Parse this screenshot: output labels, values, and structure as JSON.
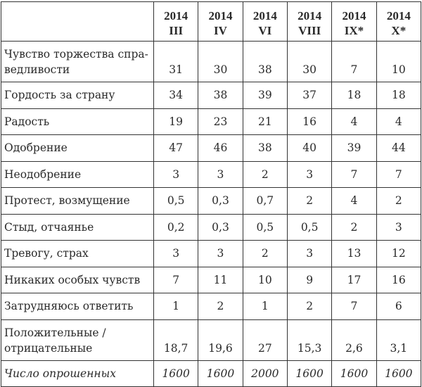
{
  "table": {
    "columns": [
      {
        "year": "2014",
        "month": "III"
      },
      {
        "year": "2014",
        "month": "IV"
      },
      {
        "year": "2014",
        "month": "VI"
      },
      {
        "year": "2014",
        "month": "VIII"
      },
      {
        "year": "2014",
        "month": "IX*"
      },
      {
        "year": "2014",
        "month": "X*"
      }
    ],
    "rows": [
      {
        "label": "Чувство торжества спра-\nведливости",
        "values": [
          "31",
          "30",
          "38",
          "30",
          "7",
          "10"
        ]
      },
      {
        "label": "Гордость за страну",
        "values": [
          "34",
          "38",
          "39",
          "37",
          "18",
          "18"
        ]
      },
      {
        "label": "Радость",
        "values": [
          "19",
          "23",
          "21",
          "16",
          "4",
          "4"
        ]
      },
      {
        "label": "Одобрение",
        "values": [
          "47",
          "46",
          "38",
          "40",
          "39",
          "44"
        ]
      },
      {
        "label": "Неодобрение",
        "values": [
          "3",
          "3",
          "2",
          "3",
          "7",
          "7"
        ]
      },
      {
        "label": "Протест, возмущение",
        "values": [
          "0,5",
          "0,3",
          "0,7",
          "2",
          "4",
          "2"
        ]
      },
      {
        "label": "Стыд, отчаянье",
        "values": [
          "0,2",
          "0,3",
          "0,5",
          "0,5",
          "2",
          "3"
        ]
      },
      {
        "label": "Тревогу, страх",
        "values": [
          "3",
          "3",
          "2",
          "3",
          "13",
          "12"
        ]
      },
      {
        "label": "Никаких особых чувств",
        "values": [
          "7",
          "11",
          "10",
          "9",
          "17",
          "16"
        ]
      },
      {
        "label": "Затрудняюсь ответить",
        "values": [
          "1",
          "2",
          "1",
          "2",
          "7",
          "6"
        ]
      },
      {
        "label": "Положительные /\nотрицательные",
        "values": [
          "18,7",
          "19,6",
          "27",
          "15,3",
          "2,6",
          "3,1"
        ]
      },
      {
        "label": "Число опрошенных",
        "values": [
          "1600",
          "1600",
          "2000",
          "1600",
          "1600",
          "1600"
        ]
      }
    ]
  }
}
